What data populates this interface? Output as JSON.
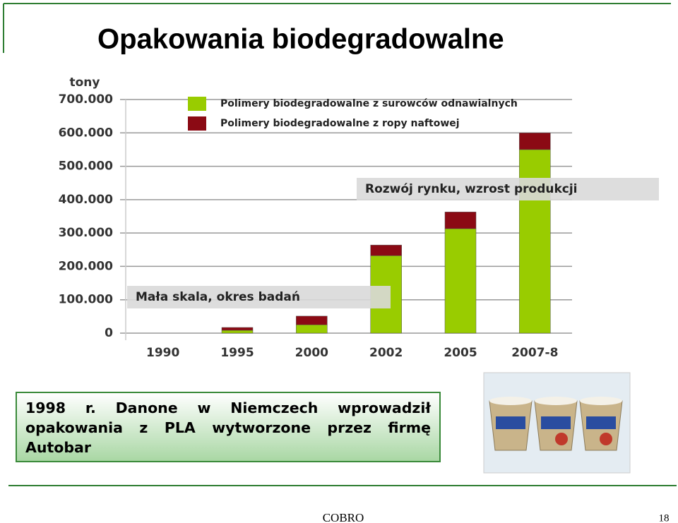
{
  "slide": {
    "title": "Opakowania biodegradowalne",
    "note": "1998 r. Danone w Niemczech wprowadził opakowania z PLA wytworzone przez firmę Autobar",
    "footer": "COBRO",
    "page_number": "18"
  },
  "chart_data": {
    "type": "stacked-bar",
    "ylabel": "tony",
    "categories": [
      "1990",
      "1995",
      "2000",
      "2002",
      "2005",
      "2007-8"
    ],
    "series": [
      {
        "name": "Polimery biodegradowalne z surowców odnawialnych",
        "color": "#99cc00",
        "values": [
          0,
          8500,
          25000,
          232000,
          313000,
          550000
        ]
      },
      {
        "name": "Polimery biodegradowalne z ropy naftowej",
        "color": "#8b0a14",
        "values": [
          0,
          8500,
          26000,
          32000,
          50000,
          50000
        ]
      }
    ],
    "ylim": [
      0,
      700000
    ],
    "yticks": [
      0,
      {
        "value": 100000,
        "label": "100.000"
      },
      {
        "value": 200000,
        "label": "200.000"
      },
      {
        "value": 300000,
        "label": "300.000"
      },
      {
        "value": 400000,
        "label": "400.000"
      },
      {
        "value": 500000,
        "label": "500.000"
      },
      {
        "value": 600000,
        "label": "600.000"
      },
      {
        "value": 700000,
        "label": "700.000"
      }
    ],
    "grid": true,
    "annotations": [
      "Rozwój rynku, wzrost produkcji",
      "Mała skala, okres badań"
    ]
  }
}
